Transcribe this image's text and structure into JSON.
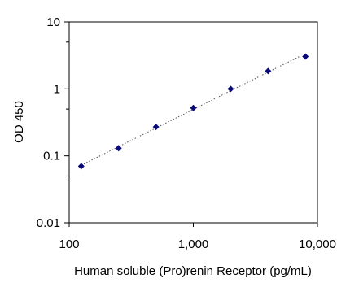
{
  "chart_data": {
    "type": "scatter",
    "title": "",
    "xlabel": "Human soluble (Pro)renin Receptor  (pg/mL)",
    "ylabel": "OD 450",
    "x_scale": "log",
    "y_scale": "log",
    "xlim": [
      100,
      10000
    ],
    "ylim": [
      0.01,
      10
    ],
    "x_ticks": [
      {
        "value": 100,
        "label": "100"
      },
      {
        "value": 1000,
        "label": "1,000"
      },
      {
        "value": 10000,
        "label": "10,000"
      }
    ],
    "y_ticks": [
      {
        "value": 0.01,
        "label": "0.01"
      },
      {
        "value": 0.1,
        "label": "0.1"
      },
      {
        "value": 1,
        "label": "1"
      },
      {
        "value": 10,
        "label": "10"
      }
    ],
    "grid": false,
    "legend": "none",
    "series": [
      {
        "x": [
          125,
          250,
          500,
          1000,
          2000,
          4000,
          8000
        ],
        "y": [
          0.07,
          0.13,
          0.27,
          0.52,
          1.0,
          1.85,
          3.05
        ],
        "marker": "diamond",
        "trendline": "dotted"
      }
    ],
    "colors": {
      "marker": "#0a0a78",
      "trendline": "#555555",
      "axis": "#000000"
    }
  }
}
